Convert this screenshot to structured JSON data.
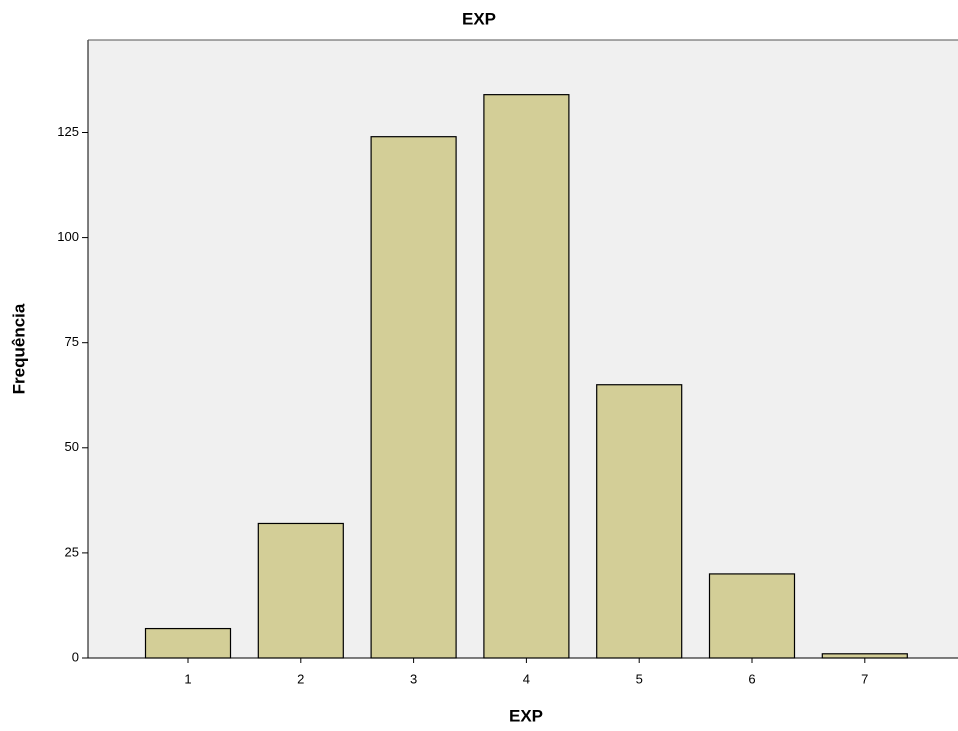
{
  "chart_data": {
    "type": "bar",
    "title": "EXP",
    "x_label": "EXP",
    "y_label": "Frequência",
    "categories": [
      "1",
      "2",
      "3",
      "4",
      "5",
      "6",
      "7"
    ],
    "values": [
      7,
      32,
      124,
      134,
      65,
      20,
      1
    ],
    "color": "#d3ce97",
    "ylim": [
      0,
      147
    ],
    "yticks": [
      0,
      25,
      50,
      75,
      100,
      125
    ],
    "grid": false
  }
}
